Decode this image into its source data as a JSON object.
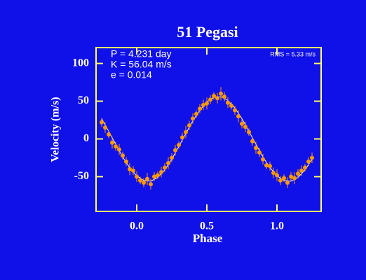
{
  "chart_data": {
    "type": "scatter",
    "title": "51 Pegasi",
    "annotations": [
      "P = 4.231 day",
      "K = 56.04 m/s",
      "e = 0.014"
    ],
    "rms_label": "RMS = 5.33 m/s",
    "xlabel": "Phase",
    "ylabel": "Velocity  (m/s)",
    "xlim": [
      -0.29,
      1.315
    ],
    "ylim": [
      -96,
      121
    ],
    "xticks": [
      {
        "value": 0,
        "label": "0.0"
      },
      {
        "value": 0.5,
        "label": "0.5"
      },
      {
        "value": 1,
        "label": "1.0"
      }
    ],
    "yticks": [
      -50,
      0,
      50,
      100
    ],
    "color": "#ff9900",
    "x": [
      -0.25,
      -0.225,
      -0.2,
      -0.175,
      -0.15,
      -0.125,
      -0.1,
      -0.075,
      -0.05,
      -0.025,
      0,
      0.025,
      0.05,
      0.075,
      0.1,
      0.125,
      0.15,
      0.175,
      0.2,
      0.225,
      0.25,
      0.275,
      0.3,
      0.325,
      0.35,
      0.375,
      0.4,
      0.425,
      0.45,
      0.475,
      0.5,
      0.525,
      0.55,
      0.575,
      0.6,
      0.625,
      0.65,
      0.675,
      0.7,
      0.725,
      0.75,
      0.775,
      0.8,
      0.825,
      0.85,
      0.875,
      0.9,
      0.925,
      0.95,
      0.975,
      1,
      1.025,
      1.05,
      1.075,
      1.1,
      1.125,
      1.15,
      1.175,
      1.2,
      1.225,
      1.25
    ],
    "values": [
      22,
      15,
      6,
      -5,
      -10,
      -14,
      -22,
      -30,
      -40,
      -42,
      -50,
      -55,
      -58,
      -53,
      -60,
      -50,
      -48,
      -44,
      -38,
      -32,
      -25,
      -15,
      -8,
      2,
      9,
      18,
      27,
      33,
      40,
      45,
      47,
      52,
      57,
      54,
      60,
      56,
      48,
      44,
      38,
      30,
      20,
      16,
      9,
      -3,
      -12,
      -18,
      -27,
      -35,
      -36,
      -45,
      -48,
      -55,
      -52,
      -58,
      -50,
      -52,
      -46,
      -42,
      -38,
      -30,
      -25
    ],
    "errors": [
      6,
      7,
      5,
      8,
      6,
      7,
      5,
      6,
      8,
      6,
      7,
      5,
      6,
      8,
      7,
      6,
      5,
      7,
      6,
      8,
      6,
      7,
      5,
      6,
      8,
      6,
      7,
      5,
      6,
      7,
      8,
      6,
      5,
      7,
      9,
      6,
      7,
      5,
      6,
      8,
      6,
      7,
      5,
      6,
      8,
      6,
      7,
      5,
      6,
      7,
      8,
      6,
      5,
      7,
      6,
      8,
      6,
      7,
      5,
      6,
      7
    ],
    "fit": {
      "color": "#ffffff",
      "x": [
        -0.25,
        -0.2,
        -0.15,
        -0.1,
        -0.05,
        0,
        0.05,
        0.1,
        0.15,
        0.2,
        0.25,
        0.3,
        0.35,
        0.4,
        0.45,
        0.5,
        0.55,
        0.6,
        0.65,
        0.7,
        0.75,
        0.8,
        0.85,
        0.9,
        0.95,
        1,
        1.05,
        1.1,
        1.15,
        1.2,
        1.25
      ],
      "values": [
        27,
        10,
        -7,
        -24,
        -38,
        -49,
        -55,
        -56,
        -51,
        -41,
        -27,
        -10,
        7,
        24,
        38,
        49,
        55,
        56,
        51,
        41,
        27,
        10,
        -7,
        -24,
        -38,
        -49,
        -55,
        -56,
        -51,
        -41,
        -27
      ]
    }
  }
}
